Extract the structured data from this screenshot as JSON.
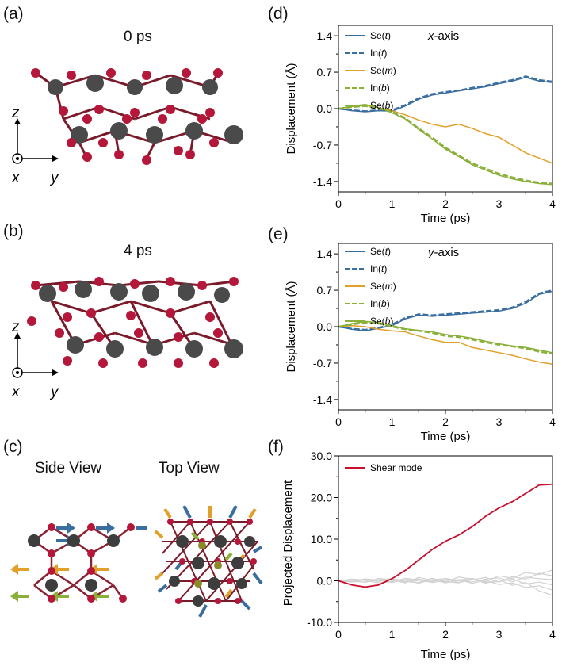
{
  "panels": {
    "a": {
      "label": "(a)",
      "time": "0 ps"
    },
    "b": {
      "label": "(b)",
      "time": "4 ps"
    },
    "c": {
      "label": "(c)",
      "side": "Side View",
      "top": "Top View"
    },
    "d": {
      "label": "(d)"
    },
    "e": {
      "label": "(e)"
    },
    "f": {
      "label": "(f)"
    }
  },
  "axes_glyph": {
    "z": "z",
    "x": "x",
    "y": "y"
  },
  "colors": {
    "se_dark": "#4a4a4a",
    "in_red": "#b5173a",
    "blue": "#3b6ea0",
    "orange": "#e0a02a",
    "green": "#8ab03a",
    "shear": "#c8102e",
    "gray": "#d2d2d2"
  },
  "chart_data": [
    {
      "type": "line",
      "id": "d",
      "annotation_prefix": "x",
      "annotation_suffix": "-axis",
      "xlabel": "Time (ps)",
      "ylabel": "Displacement (Å)",
      "xlim": [
        0,
        4
      ],
      "ylim": [
        -1.6,
        1.6
      ],
      "xticks": [
        "0",
        "1",
        "2",
        "3",
        "4"
      ],
      "yticks": [
        "1.4",
        "0.7",
        "0.0",
        "-0.7",
        "-1.4"
      ],
      "legend": [
        {
          "name": "Se",
          "tag": "t",
          "style": "solid",
          "color": "#3b6ea0"
        },
        {
          "name": "In",
          "tag": "t",
          "style": "dashed",
          "color": "#3b6ea0"
        },
        {
          "name": "Se",
          "tag": "m",
          "style": "solid",
          "color": "#e0a02a"
        },
        {
          "name": "In",
          "tag": "b",
          "style": "dashed",
          "color": "#8ab03a"
        },
        {
          "name": "Se",
          "tag": "b",
          "style": "solid",
          "color": "#8ab03a"
        }
      ],
      "x": [
        0,
        0.25,
        0.5,
        0.75,
        1.0,
        1.25,
        1.5,
        1.75,
        2.0,
        2.25,
        2.5,
        2.75,
        3.0,
        3.25,
        3.5,
        3.75,
        4.0
      ],
      "series": [
        {
          "name": "Se(t)",
          "values": [
            0,
            -0.04,
            -0.06,
            -0.04,
            -0.05,
            0.05,
            0.18,
            0.26,
            0.3,
            0.34,
            0.38,
            0.42,
            0.48,
            0.53,
            0.6,
            0.53,
            0.5
          ]
        },
        {
          "name": "In(t)",
          "values": [
            0,
            -0.03,
            -0.05,
            -0.03,
            -0.03,
            0.07,
            0.2,
            0.28,
            0.32,
            0.35,
            0.4,
            0.44,
            0.5,
            0.55,
            0.62,
            0.55,
            0.52
          ]
        },
        {
          "name": "Se(m)",
          "values": [
            0,
            0.04,
            0.06,
            0.02,
            -0.04,
            -0.12,
            -0.22,
            -0.3,
            -0.35,
            -0.3,
            -0.38,
            -0.48,
            -0.55,
            -0.7,
            -0.85,
            -0.95,
            -1.05
          ]
        },
        {
          "name": "In(b)",
          "values": [
            0,
            0.03,
            0.05,
            0.0,
            -0.06,
            -0.18,
            -0.38,
            -0.55,
            -0.75,
            -0.9,
            -1.05,
            -1.15,
            -1.25,
            -1.32,
            -1.38,
            -1.42,
            -1.44
          ]
        },
        {
          "name": "Se(b)",
          "values": [
            0,
            0.05,
            0.08,
            0.02,
            -0.08,
            -0.2,
            -0.4,
            -0.58,
            -0.78,
            -0.92,
            -1.08,
            -1.18,
            -1.28,
            -1.35,
            -1.4,
            -1.44,
            -1.46
          ]
        }
      ]
    },
    {
      "type": "line",
      "id": "e",
      "annotation_prefix": "y",
      "annotation_suffix": "-axis",
      "xlabel": "Time (ps)",
      "ylabel": "Displacement (Å)",
      "xlim": [
        0,
        4
      ],
      "ylim": [
        -1.6,
        1.6
      ],
      "xticks": [
        "0",
        "1",
        "2",
        "3",
        "4"
      ],
      "yticks": [
        "1.4",
        "0.7",
        "0.0",
        "-0.7",
        "-1.4"
      ],
      "legend": [
        {
          "name": "Se",
          "tag": "t",
          "style": "solid",
          "color": "#3b6ea0"
        },
        {
          "name": "In",
          "tag": "t",
          "style": "dashed",
          "color": "#3b6ea0"
        },
        {
          "name": "Se",
          "tag": "m",
          "style": "solid",
          "color": "#e0a02a"
        },
        {
          "name": "In",
          "tag": "b",
          "style": "dashed",
          "color": "#8ab03a"
        },
        {
          "name": "Se",
          "tag": "b",
          "style": "solid",
          "color": "#8ab03a"
        }
      ],
      "x": [
        0,
        0.25,
        0.5,
        0.75,
        1.0,
        1.25,
        1.5,
        1.75,
        2.0,
        2.25,
        2.5,
        2.75,
        3.0,
        3.25,
        3.5,
        3.75,
        4.0
      ],
      "series": [
        {
          "name": "Se(t)",
          "values": [
            0,
            -0.05,
            -0.08,
            -0.03,
            0.02,
            0.15,
            0.22,
            0.2,
            0.22,
            0.24,
            0.26,
            0.28,
            0.3,
            0.35,
            0.45,
            0.62,
            0.68
          ]
        },
        {
          "name": "In(t)",
          "values": [
            0,
            -0.04,
            -0.06,
            -0.02,
            0.04,
            0.17,
            0.24,
            0.22,
            0.24,
            0.26,
            0.28,
            0.3,
            0.32,
            0.37,
            0.48,
            0.64,
            0.7
          ]
        },
        {
          "name": "Se(m)",
          "values": [
            0,
            0.02,
            0.0,
            -0.05,
            -0.08,
            -0.1,
            -0.18,
            -0.25,
            -0.3,
            -0.3,
            -0.4,
            -0.45,
            -0.5,
            -0.55,
            -0.62,
            -0.68,
            -0.72
          ]
        },
        {
          "name": "In(b)",
          "values": [
            0,
            0.04,
            0.08,
            0.06,
            0.0,
            -0.05,
            -0.08,
            -0.12,
            -0.18,
            -0.2,
            -0.25,
            -0.3,
            -0.35,
            -0.38,
            -0.42,
            -0.48,
            -0.52
          ]
        },
        {
          "name": "Se(b)",
          "values": [
            0,
            0.06,
            0.1,
            0.08,
            0.02,
            -0.04,
            -0.07,
            -0.1,
            -0.15,
            -0.18,
            -0.22,
            -0.28,
            -0.33,
            -0.37,
            -0.4,
            -0.45,
            -0.5
          ]
        }
      ]
    },
    {
      "type": "line",
      "id": "f",
      "xlabel": "Time (ps)",
      "ylabel": "Projected Displacement",
      "xlim": [
        0,
        4
      ],
      "ylim": [
        -10,
        30
      ],
      "xticks": [
        "0",
        "1",
        "2",
        "3",
        "4"
      ],
      "yticks": [
        "30.0",
        "20.0",
        "10.0",
        "0.0",
        "-10.0"
      ],
      "legend": [
        {
          "name": "Shear mode",
          "color": "#c8102e"
        }
      ],
      "x": [
        0,
        0.25,
        0.5,
        0.75,
        1.0,
        1.25,
        1.5,
        1.75,
        2.0,
        2.25,
        2.5,
        2.75,
        3.0,
        3.25,
        3.5,
        3.75,
        4.0
      ],
      "series": [
        {
          "name": "Shear mode",
          "values": [
            0,
            -1.0,
            -1.5,
            -1.0,
            0.5,
            2.5,
            5.0,
            7.5,
            9.5,
            11.0,
            13.0,
            15.5,
            17.5,
            19.0,
            21.0,
            23.0,
            23.2
          ]
        },
        {
          "name": "Other mode 1",
          "values": [
            0,
            0.3,
            -0.4,
            0.6,
            0.2,
            -0.5,
            0.8,
            0.1,
            -0.3,
            0.9,
            0.4,
            -0.2,
            1.2,
            0.6,
            2.0,
            1.5,
            2.6
          ]
        },
        {
          "name": "Other mode 2",
          "values": [
            0,
            -0.3,
            0.5,
            -0.2,
            0.4,
            0.1,
            -0.6,
            0.3,
            0.5,
            -0.4,
            0.2,
            0.8,
            -0.3,
            1.0,
            0.4,
            1.8,
            1.2
          ]
        },
        {
          "name": "Other mode 3",
          "values": [
            0,
            0.2,
            0.1,
            -0.5,
            -0.2,
            0.6,
            0.2,
            -0.4,
            0.1,
            0.3,
            -0.6,
            0.1,
            -0.9,
            -0.5,
            -1.6,
            -1.2,
            -2.2
          ]
        },
        {
          "name": "Other mode 4",
          "values": [
            0,
            -0.2,
            -0.3,
            0.3,
            0.5,
            -0.2,
            -0.4,
            0.6,
            -0.2,
            -0.5,
            0.5,
            -0.6,
            0.3,
            -1.1,
            -0.4,
            -2.4,
            -3.5
          ]
        },
        {
          "name": "Other mode 5",
          "values": [
            0,
            0.4,
            0.2,
            0.1,
            -0.4,
            0.3,
            0.4,
            -0.2,
            0.6,
            0.0,
            -0.3,
            0.4,
            0.7,
            -0.2,
            0.9,
            0.5,
            0.3
          ]
        },
        {
          "name": "Other mode 6",
          "values": [
            0,
            -0.1,
            0.4,
            0.2,
            0.1,
            -0.3,
            0.1,
            0.3,
            -0.5,
            0.2,
            0.6,
            -0.4,
            -0.2,
            0.5,
            -0.8,
            -0.3,
            -1.0
          ]
        }
      ]
    }
  ]
}
